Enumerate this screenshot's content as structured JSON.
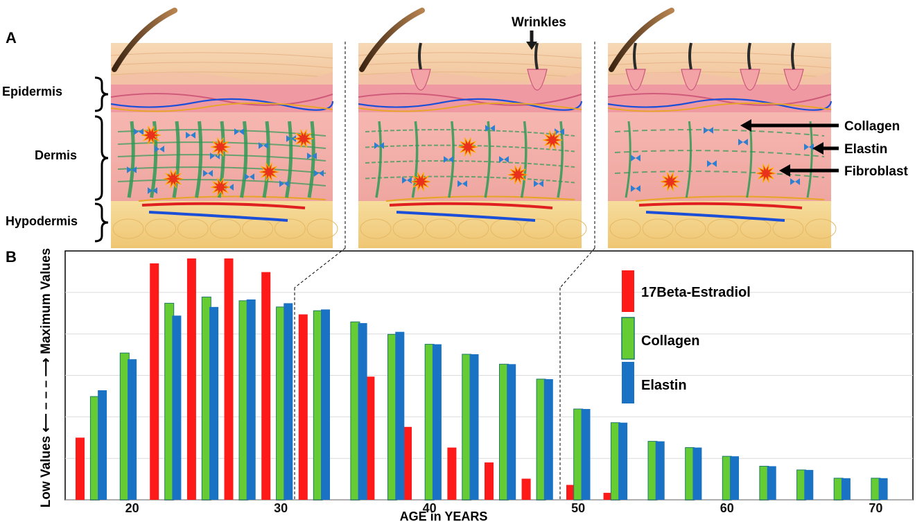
{
  "panel_a": {
    "label": "A",
    "layers": {
      "epidermis": "Epidermis",
      "dermis": "Dermis",
      "hypodermis": "Hypodermis"
    },
    "wrinkles_label": "Wrinkles",
    "callouts": {
      "collagen": "Collagen",
      "elastin": "Elastin",
      "fibroblast": "Fibroblast"
    },
    "colors": {
      "stratum": "#f4caa0",
      "dermis": "#f2a8a8",
      "hypodermis": "#f5d48a",
      "collagen_fiber": "#2e9a55",
      "elastin_marker": "#2e7fd0",
      "fibroblast": "#e8321e",
      "vessel_red": "#e02020",
      "vessel_blue": "#1c4fd8",
      "hair": "#6b4323"
    }
  },
  "panel_b": {
    "label": "B",
    "y_axis_label": "Low Values ⟵ – – – ⟶ Maximum Values",
    "x_axis_label": "AGE in YEARS",
    "legend": {
      "estradiol": "17Beta-Estradiol",
      "collagen": "Collagen",
      "elastin": "Elastin"
    }
  },
  "chart_data": {
    "type": "bar",
    "xlabel": "AGE in YEARS",
    "ylabel": "Low Values ⟵ – – – ⟶ Maximum Values",
    "x_ticks": [
      20,
      30,
      40,
      50,
      60,
      70
    ],
    "ylim": [
      0,
      100
    ],
    "grid": true,
    "legend_position": "top-right",
    "colors": {
      "17Beta-Estradiol": "#ff1a1a",
      "Collagen": "#66cc33",
      "Elastin": "#1a72c4"
    },
    "series": [
      {
        "name": "17Beta-Estradiol",
        "x": [
          16.5,
          21.5,
          24,
          26.5,
          29,
          31.5,
          36,
          38.5,
          41.5,
          44,
          46.5,
          49.5,
          52
        ],
        "values": [
          25,
          95,
          97,
          97,
          91.5,
          74.5,
          49.5,
          29.3,
          21,
          15,
          8.5,
          6,
          2.8
        ]
      },
      {
        "name": "Collagen",
        "x": [
          17.5,
          19.5,
          22.5,
          25,
          27.5,
          30,
          32.5,
          35,
          37.5,
          40,
          42.5,
          45,
          47.5,
          50,
          52.5,
          55,
          57.5,
          60,
          62.5,
          65,
          67.5,
          70
        ],
        "values": [
          41.5,
          59,
          79,
          81.5,
          80,
          77.5,
          76,
          71.5,
          66.5,
          62.5,
          58.5,
          54.5,
          48.5,
          36.5,
          31,
          23.5,
          21,
          17.5,
          13.5,
          12,
          8.7,
          8.7
        ]
      },
      {
        "name": "Elastin",
        "x": [
          18,
          20,
          23,
          25.5,
          28,
          30.5,
          33,
          35.5,
          38,
          40.5,
          43,
          45.5,
          48,
          50.5,
          53,
          55.5,
          58,
          60.5,
          63,
          65.5,
          68,
          70.5
        ],
        "values": [
          44,
          56.5,
          74,
          77.5,
          80.5,
          79,
          76.5,
          71,
          67.5,
          62.5,
          58.5,
          54.5,
          48.5,
          36.5,
          31,
          23.5,
          21,
          17.5,
          13.5,
          12,
          8.7,
          8.7
        ]
      }
    ]
  }
}
